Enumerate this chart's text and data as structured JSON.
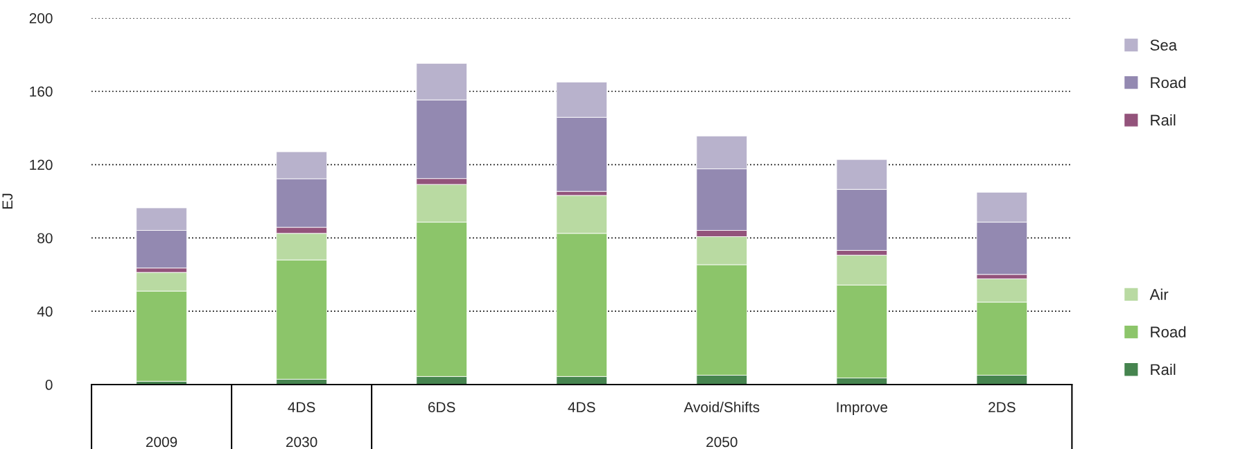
{
  "chart_data": {
    "type": "bar",
    "stacked": true,
    "ylabel": "EJ",
    "categories": [
      null,
      "4DS",
      "6DS",
      "4DS",
      "Avoid/Shifts",
      "Improve",
      "2DS"
    ],
    "annotations": [
      "2009",
      "2030",
      "2050"
    ],
    "series": [
      {
        "name": "Rail",
        "color": "#46844f",
        "values": [
          1.8,
          2.9,
          4.4,
          4.4,
          5.1,
          3.6,
          5.1
        ]
      },
      {
        "name": "Road",
        "color": "#8cc56a",
        "values": [
          49.2,
          65.1,
          84.2,
          78.1,
          60.3,
          50.7,
          39.9
        ]
      },
      {
        "name": "Air",
        "color": "#b9daa2",
        "values": [
          10.2,
          14.5,
          20.6,
          20.7,
          15.3,
          16.3,
          12.7
        ]
      },
      {
        "name": "Rail",
        "color": "#93537b",
        "values": [
          2.4,
          3.3,
          3.2,
          2.2,
          3.4,
          2.6,
          2.4
        ]
      },
      {
        "name": "Road",
        "color": "#9389b1",
        "values": [
          20.5,
          26.5,
          42.9,
          40.4,
          33.6,
          33.3,
          28.5
        ]
      },
      {
        "name": "Sea",
        "color": "#b8b2cc",
        "values": [
          12.3,
          14.7,
          19.9,
          19.2,
          17.9,
          16.3,
          16.3
        ]
      }
    ],
    "ylim": [
      0,
      200
    ],
    "yticks": [
      0,
      40,
      80,
      120,
      160,
      200
    ],
    "grid": "y",
    "legend": "right"
  }
}
